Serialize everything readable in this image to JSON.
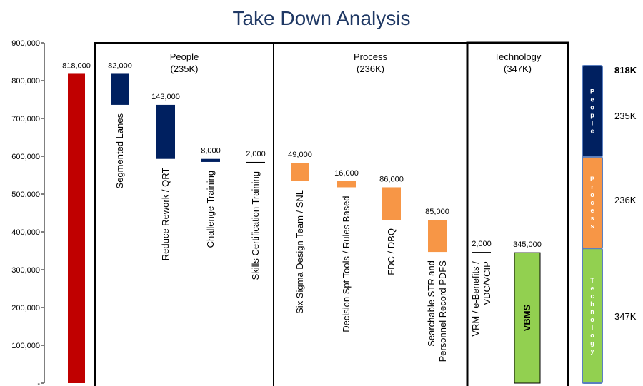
{
  "chart_data": {
    "type": "waterfall",
    "title": "Take Down Analysis",
    "categories": [
      null,
      "Segmented Lanes",
      "Reduce Rework / QRT",
      "Challenge Training",
      "Skills Certification Training",
      "Six Sigma Design Team / SNL",
      "Decision Spt Tools / Rules Based",
      "FDC / DBQ",
      "Searchable STR and\nPersonnel Record PDFS",
      "VRM / e-Benefits /\nVDC/VCIP",
      "VBMS"
    ],
    "values": [
      818000,
      82000,
      143000,
      8000,
      2000,
      49000,
      16000,
      86000,
      85000,
      2000,
      345000
    ],
    "value_labels": [
      "818,000",
      "82,000",
      "143,000",
      "8,000",
      "2,000",
      "49,000",
      "16,000",
      "86,000",
      "85,000",
      "2,000",
      "345,000"
    ],
    "colors": [
      "#c00000",
      "#002060",
      "#002060",
      "#002060",
      "#000000",
      "#f79646",
      "#f79646",
      "#f79646",
      "#f79646",
      "#000000",
      "#92d050"
    ],
    "ylim": [
      0,
      900000
    ],
    "yticks": [
      {
        "value": 0,
        "label": "-"
      },
      {
        "value": 100000,
        "label": "100,000"
      },
      {
        "value": 200000,
        "label": "200,000"
      },
      {
        "value": 300000,
        "label": "300,000"
      },
      {
        "value": 400000,
        "label": "400,000"
      },
      {
        "value": 500000,
        "label": "500,000"
      },
      {
        "value": 600000,
        "label": "600,000"
      },
      {
        "value": 700000,
        "label": "700,000"
      },
      {
        "value": 800000,
        "label": "800,000"
      },
      {
        "value": 900000,
        "label": "900,000"
      }
    ],
    "groups": [
      {
        "name": "People",
        "label": "(235K)",
        "value": 235000,
        "side_label": "235K",
        "color": "#002060"
      },
      {
        "name": "Process",
        "label": "(236K)",
        "value": 236000,
        "side_label": "236K",
        "color": "#f79646"
      },
      {
        "name": "Technology",
        "label": "(347K)",
        "value": 347000,
        "side_label": "347K",
        "color": "#92d050"
      }
    ],
    "side_total": "818K"
  }
}
